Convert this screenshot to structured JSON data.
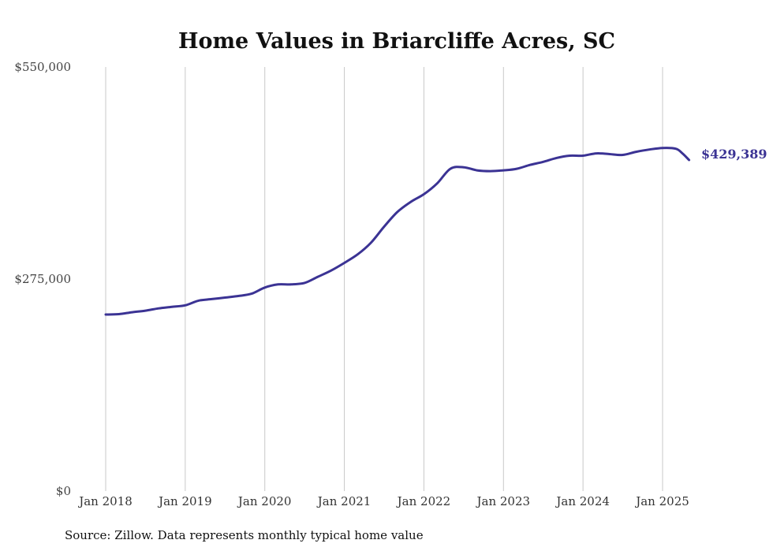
{
  "chart_data": {
    "type": "line",
    "title": "Home Values in Briarcliffe Acres, SC",
    "xlabel": "",
    "ylabel": "",
    "ylim": [
      0,
      550000
    ],
    "y_ticks": [
      {
        "value": 0,
        "label": "$0"
      },
      {
        "value": 275000,
        "label": "$275,000"
      },
      {
        "value": 550000,
        "label": "$550,000"
      }
    ],
    "x_ticks": [
      {
        "value": 2018,
        "label": "Jan 2018"
      },
      {
        "value": 2019,
        "label": "Jan 2019"
      },
      {
        "value": 2020,
        "label": "Jan 2020"
      },
      {
        "value": 2021,
        "label": "Jan 2021"
      },
      {
        "value": 2022,
        "label": "Jan 2022"
      },
      {
        "value": 2023,
        "label": "Jan 2023"
      },
      {
        "value": 2024,
        "label": "Jan 2024"
      },
      {
        "value": 2025,
        "label": "Jan 2025"
      }
    ],
    "grid": "vertical",
    "legend": "none",
    "line_color": "#3b3394",
    "end_label": "$429,389",
    "series": [
      {
        "x": [
          "2018-01",
          "2018-03",
          "2018-05",
          "2018-07",
          "2018-09",
          "2018-11",
          "2019-01",
          "2019-03",
          "2019-05",
          "2019-07",
          "2019-09",
          "2019-11",
          "2020-01",
          "2020-03",
          "2020-05",
          "2020-07",
          "2020-09",
          "2020-11",
          "2021-01",
          "2021-03",
          "2021-05",
          "2021-07",
          "2021-09",
          "2021-11",
          "2022-01",
          "2022-03",
          "2022-05",
          "2022-07",
          "2022-09",
          "2022-11",
          "2023-01",
          "2023-03",
          "2023-05",
          "2023-07",
          "2023-09",
          "2023-11",
          "2024-01",
          "2024-03",
          "2024-05",
          "2024-07",
          "2024-09",
          "2024-11",
          "2025-01",
          "2025-03",
          "2025-04",
          "2025-05"
        ],
        "y": [
          229000,
          229500,
          232000,
          234000,
          237000,
          239000,
          241000,
          247000,
          249000,
          251000,
          253000,
          256000,
          264000,
          268000,
          268000,
          270000,
          278000,
          286000,
          296000,
          307000,
          322000,
          343000,
          362000,
          375000,
          385000,
          399000,
          418000,
          420000,
          416000,
          415000,
          416000,
          418000,
          423000,
          427000,
          432000,
          435000,
          435000,
          438000,
          437000,
          436000,
          440000,
          443000,
          445000,
          444000,
          438000,
          429389
        ]
      }
    ],
    "source": "Source: Zillow. Data represents monthly typical home value"
  }
}
